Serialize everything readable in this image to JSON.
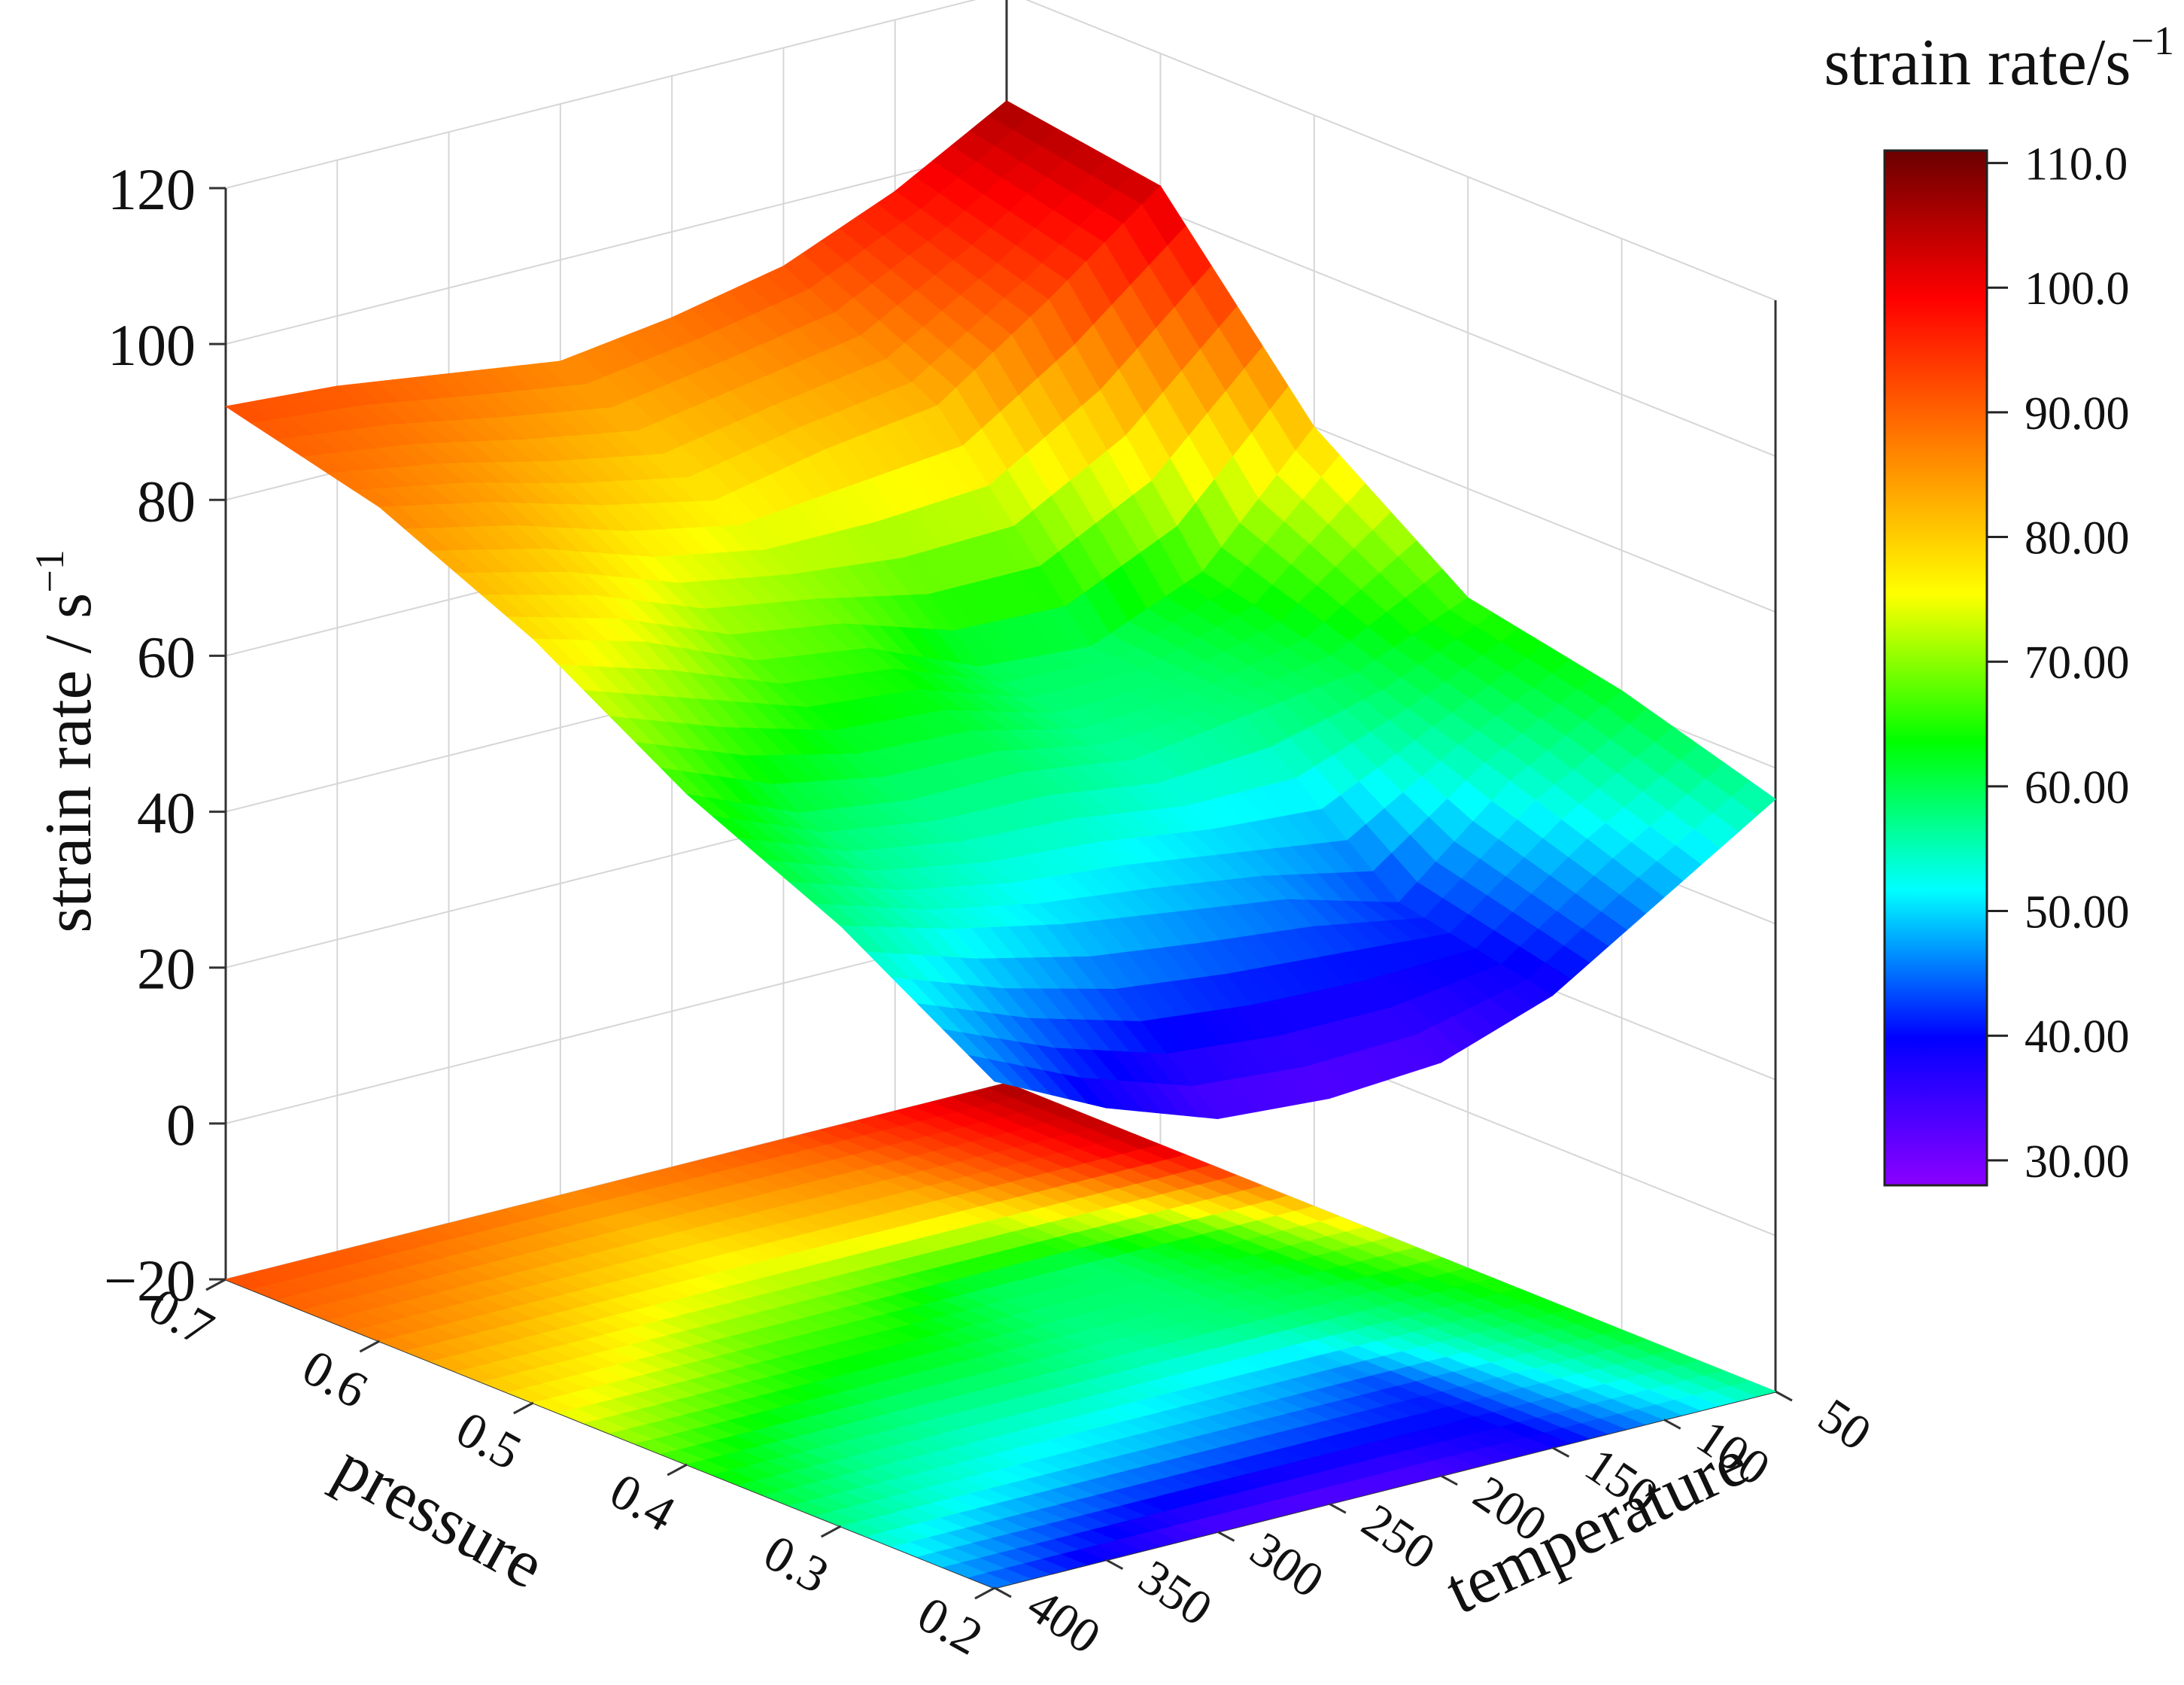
{
  "chart_data": {
    "type": "surface3d",
    "title": "",
    "zlabel": "strain rate / s",
    "zlabel_superscript": "−1",
    "xlabel": "pressure",
    "ylabel": "temperature",
    "colorbar_title": "strain rate/s",
    "colorbar_title_superscript": "−1",
    "z_ticks": [
      "120",
      "100",
      "80",
      "60",
      "40",
      "20",
      "0",
      "−20"
    ],
    "pressure_ticks": [
      "0.7",
      "0.6",
      "0.5",
      "0.4",
      "0.3",
      "0.2"
    ],
    "temperature_ticks": [
      "50",
      "100",
      "150",
      "200",
      "250",
      "300",
      "350",
      "400"
    ],
    "colorbar_ticks": [
      "110.0",
      "100.0",
      "90.00",
      "80.00",
      "70.00",
      "60.00",
      "50.00",
      "40.00",
      "30.00"
    ],
    "pressure": [
      0.7,
      0.6,
      0.5,
      0.4,
      0.3,
      0.2
    ],
    "temperature": [
      400,
      350,
      300,
      250,
      200,
      150,
      100,
      50
    ],
    "z_range": [
      -20,
      120
    ],
    "colorbar_range": [
      28,
      111
    ],
    "grid": true,
    "contour_projection": true,
    "colorscale": [
      "#8b00ff",
      "#0000ff",
      "#00ffff",
      "#00ff00",
      "#ffff00",
      "#ff7f00",
      "#ff0000",
      "#6b0000"
    ],
    "values": [
      [
        92,
        91,
        89,
        87,
        89,
        92,
        98,
        106
      ],
      [
        87,
        84,
        80,
        77,
        80,
        82,
        92,
        103
      ],
      [
        78,
        74,
        68,
        66,
        60,
        59,
        65,
        80
      ],
      [
        66,
        60,
        58,
        58,
        56,
        58,
        60,
        66
      ],
      [
        57,
        53,
        50,
        48,
        46,
        42,
        54,
        62
      ],
      [
        45,
        38,
        33,
        32,
        33,
        38,
        47,
        56
      ]
    ]
  }
}
